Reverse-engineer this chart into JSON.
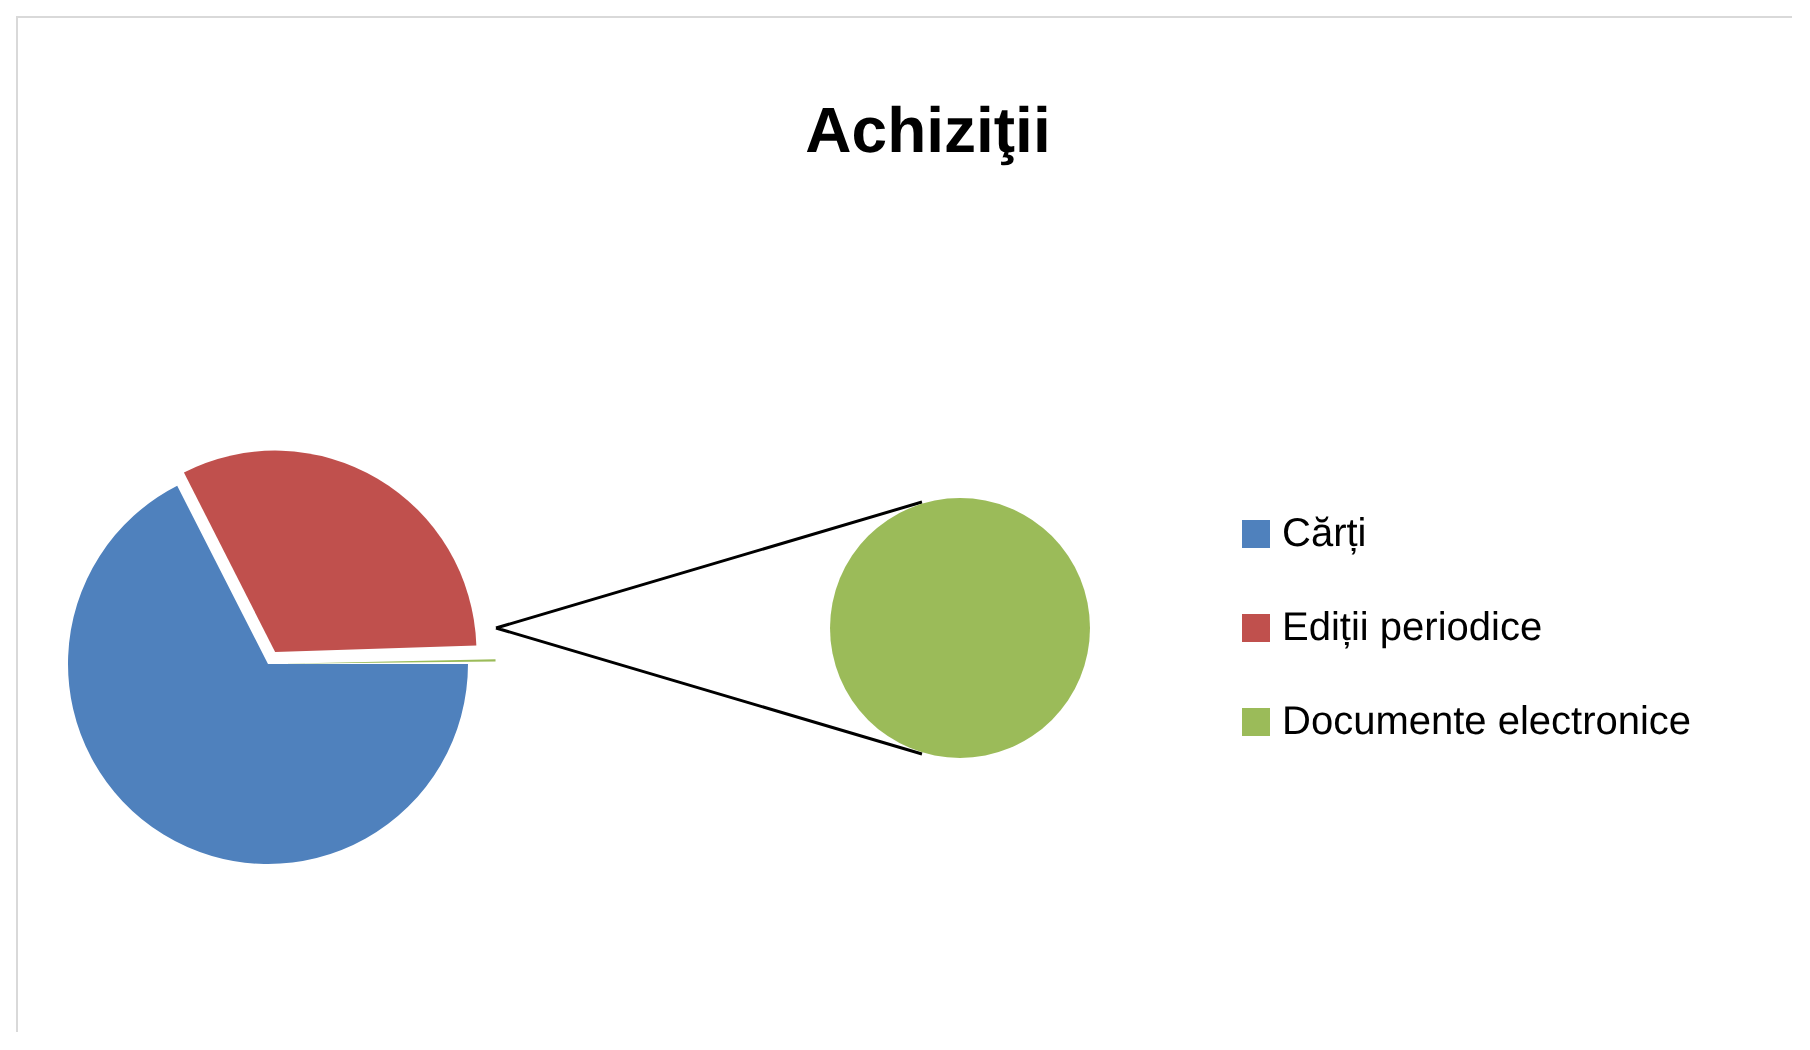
{
  "chart_data": {
    "type": "pie",
    "title": "Achiziţii",
    "categories": [
      "Cărți",
      "Ediții periodice",
      "Documente electronice"
    ],
    "values": [
      67.5,
      32,
      0.5
    ],
    "colors": [
      "#4f81bd",
      "#c0504d",
      "#9bbb59"
    ],
    "legend": "right"
  }
}
